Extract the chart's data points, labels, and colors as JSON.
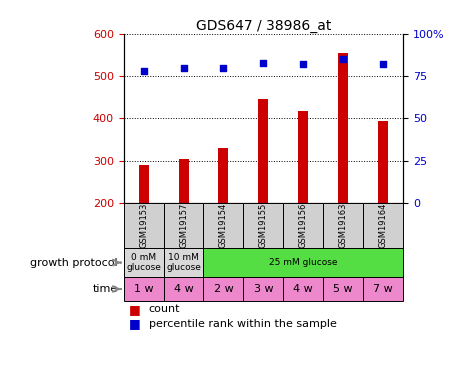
{
  "title": "GDS647 / 38986_at",
  "samples": [
    "GSM19153",
    "GSM19157",
    "GSM19154",
    "GSM19155",
    "GSM19156",
    "GSM19163",
    "GSM19164"
  ],
  "counts": [
    290,
    303,
    330,
    447,
    418,
    554,
    395
  ],
  "percentiles": [
    78,
    80,
    80,
    83,
    82,
    85,
    82
  ],
  "ylim_left": [
    200,
    600
  ],
  "ylim_right": [
    0,
    100
  ],
  "yticks_left": [
    200,
    300,
    400,
    500,
    600
  ],
  "yticks_right": [
    0,
    25,
    50,
    75,
    100
  ],
  "bar_color": "#cc0000",
  "dot_color": "#0000cc",
  "growth_protocol": [
    {
      "label": "0 mM\nglucose",
      "span": 1,
      "color": "#d8d8d8"
    },
    {
      "label": "10 mM\nglucose",
      "span": 1,
      "color": "#d8d8d8"
    },
    {
      "label": "25 mM glucose",
      "span": 5,
      "color": "#55dd44"
    }
  ],
  "time_labels": [
    "1 w",
    "4 w",
    "2 w",
    "3 w",
    "4 w",
    "5 w",
    "7 w"
  ],
  "time_color": "#ee88cc",
  "sample_bg_color": "#d0d0d0",
  "left_label_color": "#cc0000",
  "right_label_color": "#0000cc",
  "legend_count_label": "count",
  "legend_percentile_label": "percentile rank within the sample",
  "growth_protocol_text": "growth protocol",
  "time_text": "time",
  "bar_width": 0.25
}
